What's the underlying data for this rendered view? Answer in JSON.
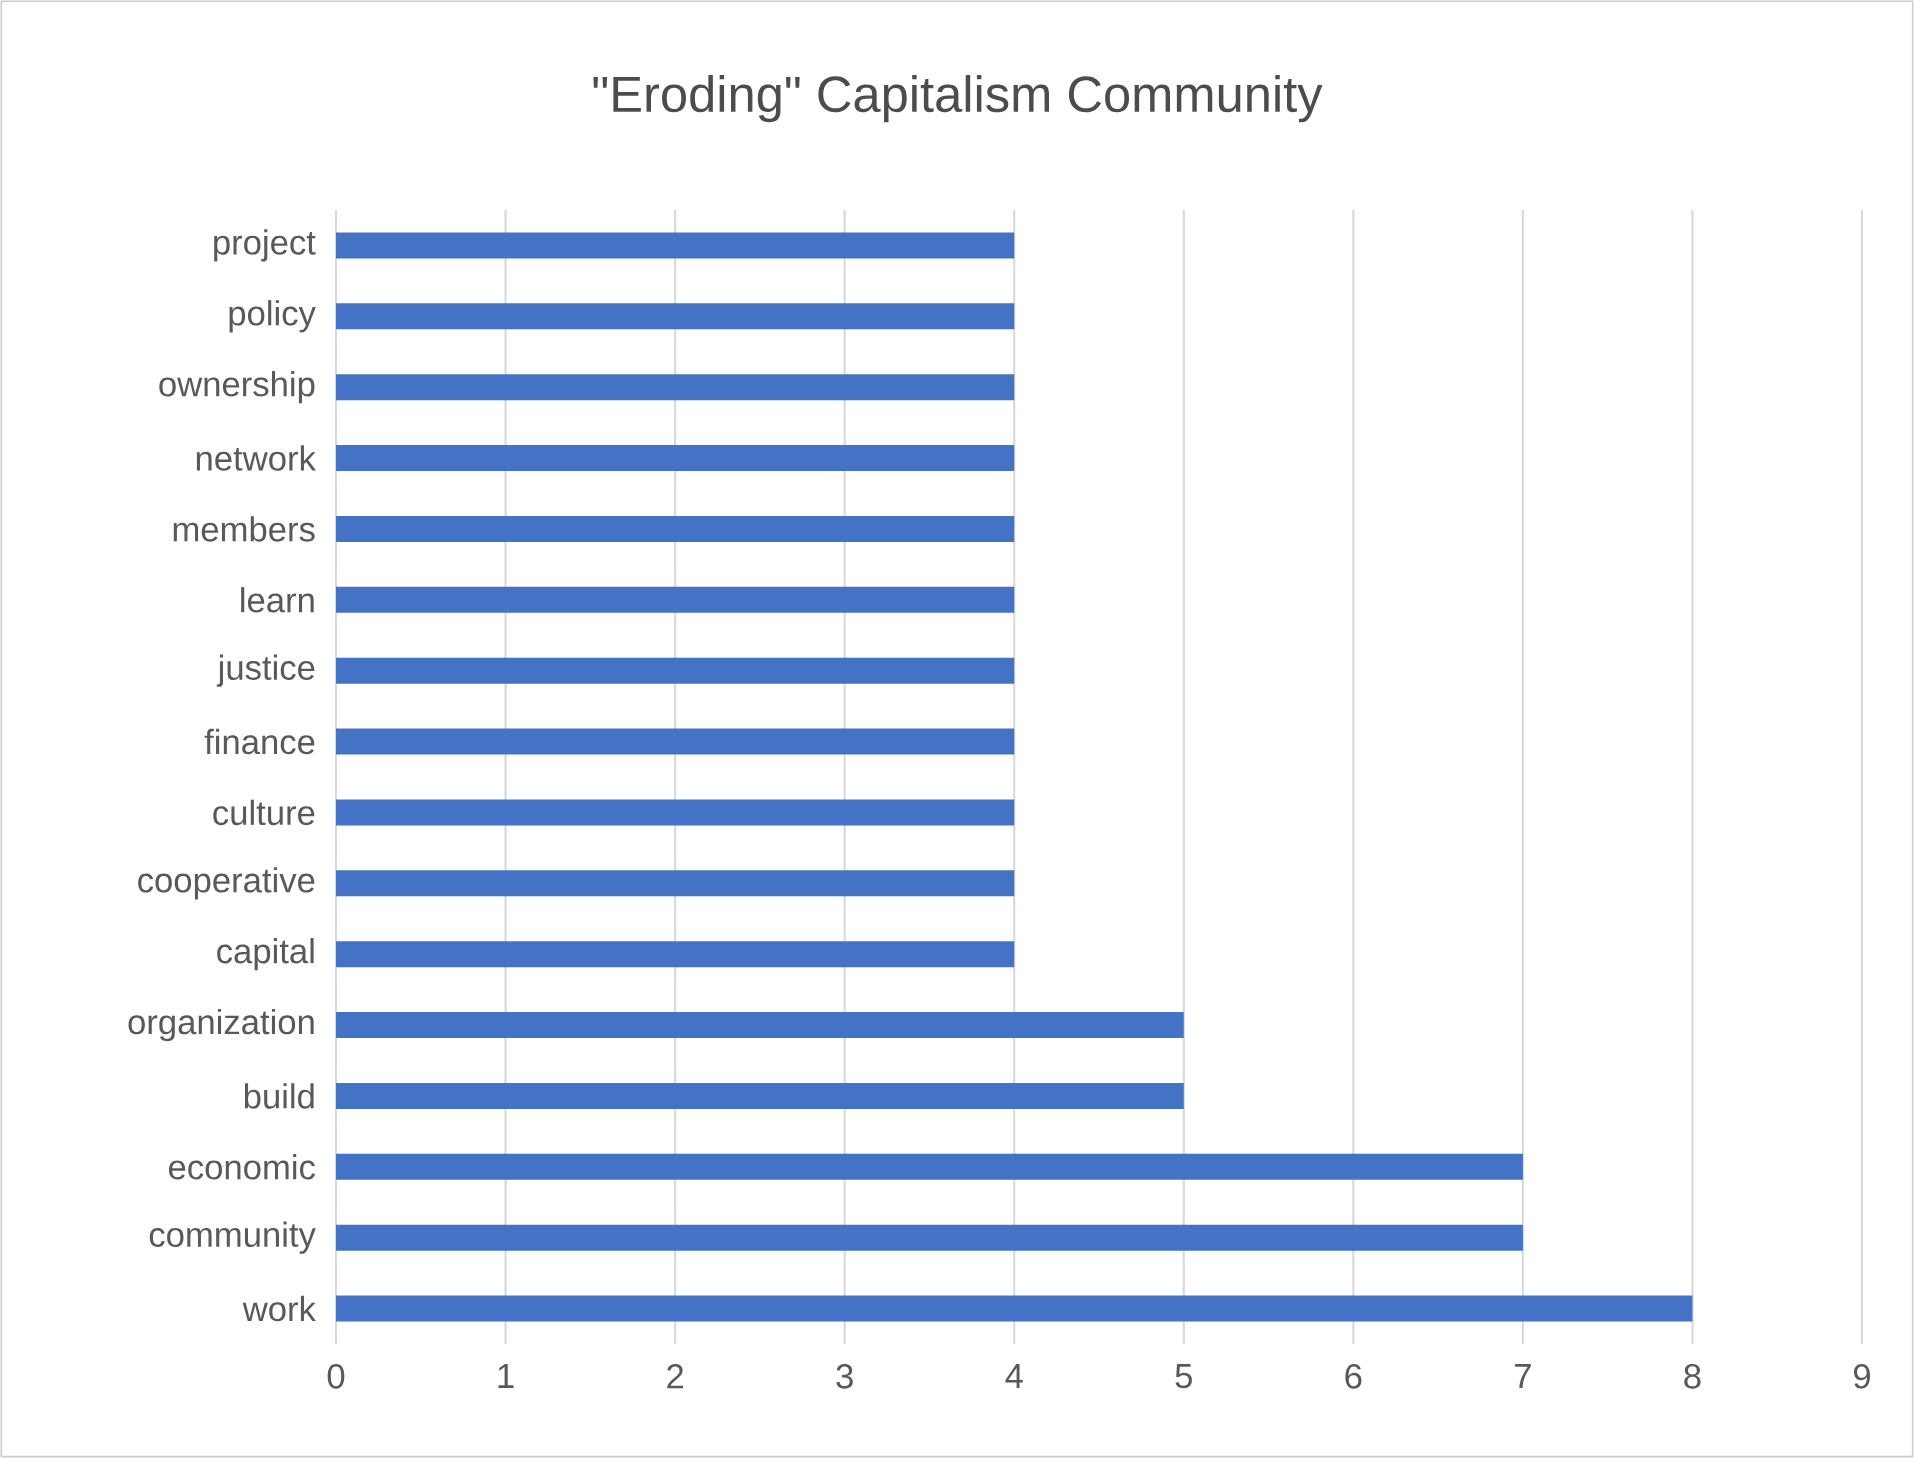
{
  "chart_data": {
    "type": "bar",
    "orientation": "horizontal",
    "title": "\"Eroding\" Capitalism Community",
    "categories": [
      "project",
      "policy",
      "ownership",
      "network",
      "members",
      "learn",
      "justice",
      "finance",
      "culture",
      "cooperative",
      "capital",
      "organization",
      "build",
      "economic",
      "community",
      "work"
    ],
    "values": [
      4,
      4,
      4,
      4,
      4,
      4,
      4,
      4,
      4,
      4,
      4,
      5,
      5,
      7,
      7,
      8
    ],
    "color": "#4472c4",
    "xlim": [
      0,
      9
    ],
    "xticks": [
      0,
      1,
      2,
      3,
      4,
      5,
      6,
      7,
      8,
      9
    ],
    "grid": "x"
  }
}
